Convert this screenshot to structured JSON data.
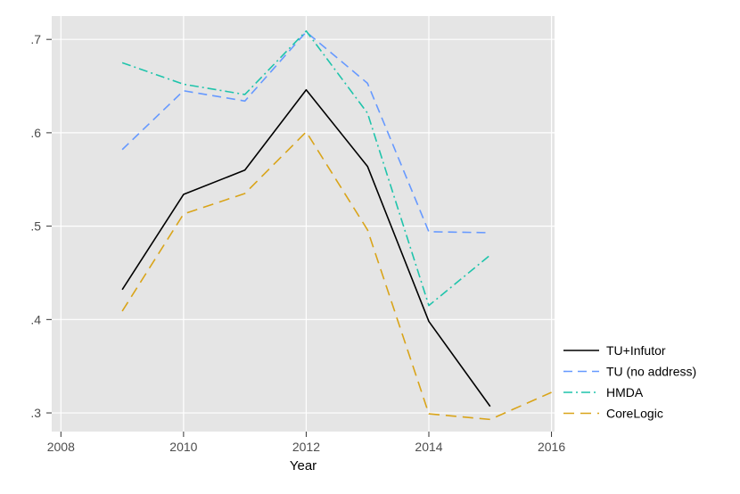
{
  "chart_data": {
    "type": "line",
    "title": "",
    "xlabel": "Year",
    "ylabel": "",
    "xlim": [
      2007.85,
      2016.05
    ],
    "ylim": [
      0.28,
      0.725
    ],
    "xticks": [
      2008,
      2010,
      2012,
      2014,
      2016
    ],
    "xtick_labels": [
      "2008",
      "2010",
      "2012",
      "2014",
      "2016"
    ],
    "yticks": [
      0.3,
      0.4,
      0.5,
      0.6,
      0.7
    ],
    "ytick_labels": [
      ".3",
      ".4",
      ".5",
      ".6",
      ".7"
    ],
    "grid": true,
    "legend_position": "right",
    "background_color": "#e5e5e5",
    "grid_color": "#ffffff",
    "series": [
      {
        "name": "TU+Infutor",
        "color": "#000000",
        "dash": "solid",
        "x": [
          2009,
          2010,
          2011,
          2012,
          2013,
          2014,
          2015
        ],
        "y": [
          0.432,
          0.534,
          0.56,
          0.646,
          0.564,
          0.398,
          0.307
        ]
      },
      {
        "name": "TU (no address)",
        "color": "#6699ff",
        "dash": "dash",
        "x": [
          2009,
          2010,
          2011,
          2012,
          2013,
          2014,
          2015
        ],
        "y": [
          0.582,
          0.645,
          0.634,
          0.708,
          0.653,
          0.494,
          0.493
        ]
      },
      {
        "name": "HMDA",
        "color": "#1fc4ab",
        "dash": "dashdot",
        "x": [
          2009,
          2010,
          2011,
          2012,
          2013,
          2014,
          2015
        ],
        "y": [
          0.675,
          0.652,
          0.641,
          0.709,
          0.621,
          0.415,
          0.469
        ]
      },
      {
        "name": "CoreLogic",
        "color": "#d9a419",
        "dash": "longdash",
        "x": [
          2009,
          2010,
          2011,
          2012,
          2013,
          2014,
          2015,
          2016
        ],
        "y": [
          0.409,
          0.513,
          0.535,
          0.601,
          0.496,
          0.299,
          0.293,
          0.322
        ]
      }
    ]
  }
}
